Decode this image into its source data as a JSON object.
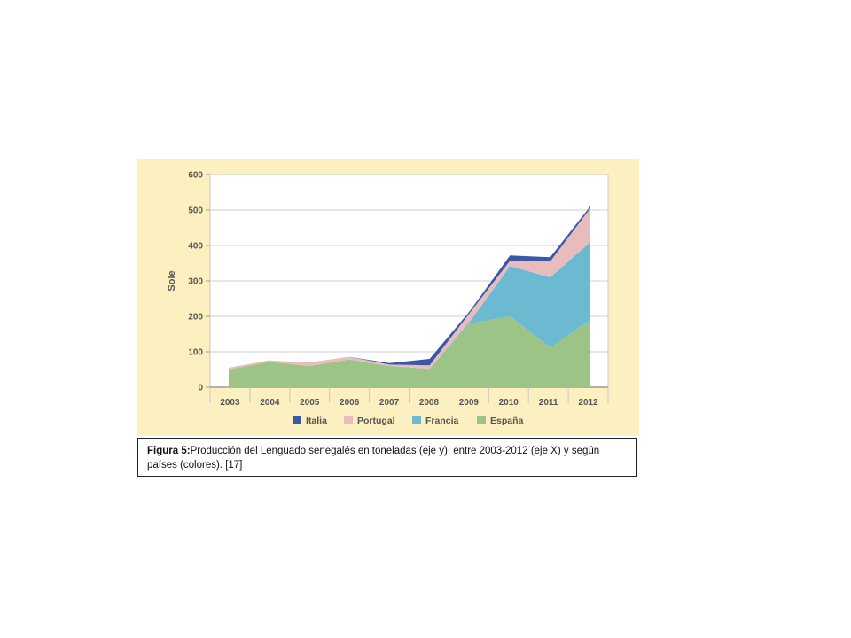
{
  "chart_data": {
    "type": "area",
    "stacked": true,
    "ylabel": "Sole",
    "xlabel": "",
    "x": [
      "2003",
      "2004",
      "2005",
      "2006",
      "2007",
      "2008",
      "2009",
      "2010",
      "2011",
      "2012"
    ],
    "ylim": [
      0,
      600
    ],
    "yticks": [
      0,
      100,
      200,
      300,
      400,
      500,
      600
    ],
    "grid": true,
    "legend_position": "bottom",
    "series": [
      {
        "name": "España",
        "color": "#9dc487",
        "values": [
          50,
          72,
          60,
          78,
          60,
          52,
          180,
          200,
          112,
          190
        ]
      },
      {
        "name": "Francia",
        "color": "#6cb9d2",
        "values": [
          0,
          0,
          0,
          0,
          0,
          0,
          5,
          142,
          198,
          220
        ]
      },
      {
        "name": "Portugal",
        "color": "#e8bcbc",
        "values": [
          5,
          4,
          10,
          8,
          4,
          10,
          25,
          15,
          45,
          95
        ]
      },
      {
        "name": "Italia",
        "color": "#3b58a4",
        "values": [
          0,
          0,
          0,
          0,
          4,
          18,
          5,
          15,
          12,
          6
        ]
      }
    ],
    "legend_order": [
      "Italia",
      "Portugal",
      "Francia",
      "España"
    ]
  },
  "caption": {
    "label": "Figura 5:",
    "text": "Producción del Lenguado senegalés en toneladas (eje y), entre 2003-2012  (eje X) y según países (colores). [17]"
  }
}
